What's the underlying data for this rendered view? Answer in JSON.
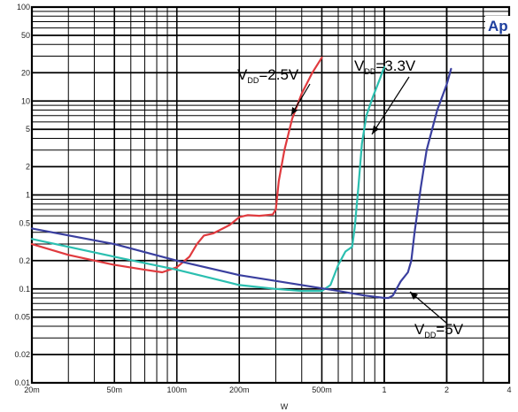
{
  "chart_data": {
    "type": "line",
    "x_scale": "log",
    "y_scale": "log",
    "xlim": [
      0.02,
      4
    ],
    "ylim": [
      0.01,
      100
    ],
    "grid": true,
    "xlabel": "W",
    "logo": "Ap",
    "x_ticks": [
      {
        "v": 0.02,
        "label": "20m"
      },
      {
        "v": 0.05,
        "label": "50m"
      },
      {
        "v": 0.1,
        "label": "100m"
      },
      {
        "v": 0.2,
        "label": "200m"
      },
      {
        "v": 0.5,
        "label": "500m"
      },
      {
        "v": 1,
        "label": "1"
      },
      {
        "v": 2,
        "label": "2"
      },
      {
        "v": 4,
        "label": "4"
      }
    ],
    "y_ticks": [
      {
        "v": 0.01,
        "label": "0.01"
      },
      {
        "v": 0.02,
        "label": "0.02"
      },
      {
        "v": 0.05,
        "label": "0.05"
      },
      {
        "v": 0.1,
        "label": "0.1"
      },
      {
        "v": 0.2,
        "label": "0.2"
      },
      {
        "v": 0.5,
        "label": "0.5"
      },
      {
        "v": 1,
        "label": "1"
      },
      {
        "v": 2,
        "label": "2"
      },
      {
        "v": 5,
        "label": "5"
      },
      {
        "v": 10,
        "label": "10"
      },
      {
        "v": 20,
        "label": "20"
      },
      {
        "v": 50,
        "label": "50"
      },
      {
        "v": 100,
        "label": "100"
      }
    ],
    "series": [
      {
        "key": "vdd25",
        "color": "#e03a3e",
        "x": [
          0.02,
          0.03,
          0.05,
          0.07,
          0.085,
          0.1,
          0.115,
          0.125,
          0.135,
          0.15,
          0.18,
          0.2,
          0.22,
          0.25,
          0.27,
          0.29,
          0.3,
          0.31,
          0.33,
          0.36,
          0.4,
          0.45,
          0.5
        ],
        "y": [
          0.3,
          0.23,
          0.18,
          0.16,
          0.15,
          0.17,
          0.22,
          0.3,
          0.37,
          0.39,
          0.48,
          0.58,
          0.61,
          0.6,
          0.61,
          0.62,
          0.7,
          1.4,
          3.0,
          6.5,
          12.0,
          20.0,
          29.0
        ]
      },
      {
        "key": "vdd33",
        "color": "#2bbfb0",
        "x": [
          0.02,
          0.05,
          0.1,
          0.2,
          0.3,
          0.4,
          0.5,
          0.55,
          0.6,
          0.65,
          0.7,
          0.72,
          0.75,
          0.78,
          0.82,
          0.88,
          0.95,
          1.0
        ],
        "y": [
          0.34,
          0.22,
          0.16,
          0.11,
          0.1,
          0.095,
          0.095,
          0.11,
          0.18,
          0.25,
          0.28,
          0.45,
          1.2,
          3.5,
          7.0,
          11.0,
          17.0,
          23.0
        ]
      },
      {
        "key": "vdd5",
        "color": "#3a3f9f",
        "x": [
          0.02,
          0.05,
          0.1,
          0.2,
          0.4,
          0.6,
          0.8,
          1.0,
          1.05,
          1.1,
          1.2,
          1.3,
          1.35,
          1.4,
          1.5,
          1.6,
          1.8,
          2.0,
          2.1
        ],
        "y": [
          0.44,
          0.3,
          0.2,
          0.14,
          0.11,
          0.095,
          0.085,
          0.08,
          0.08,
          0.085,
          0.12,
          0.15,
          0.2,
          0.4,
          1.2,
          3.0,
          8.0,
          15.0,
          22.0
        ]
      }
    ],
    "annotations": [
      {
        "key": "a25",
        "main": "V",
        "sub": "DD",
        "value": "=2.5V"
      },
      {
        "key": "a33",
        "main": "V",
        "sub": "DD",
        "value": "=3.3V"
      },
      {
        "key": "a5",
        "main": "V",
        "sub": "DD",
        "value": "=5V"
      }
    ]
  }
}
